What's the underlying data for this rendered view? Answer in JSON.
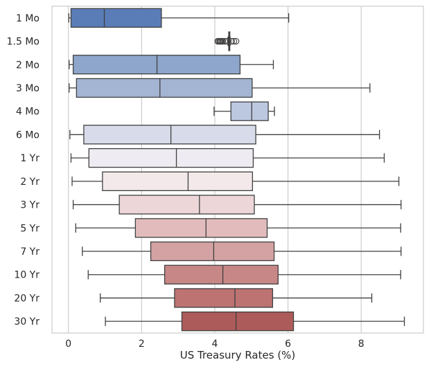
{
  "chart_data": {
    "type": "boxplot",
    "orientation": "horizontal",
    "xlabel": "US Treasury Rates (%)",
    "ylabel": "",
    "xlim": [
      -0.45,
      9.7
    ],
    "xticks": [
      0,
      2,
      4,
      6,
      8
    ],
    "grid": "vertical",
    "categories": [
      "1 Mo",
      "1.5 Mo",
      "2 Mo",
      "3 Mo",
      "4 Mo",
      "6 Mo",
      "1 Yr",
      "2 Yr",
      "3 Yr",
      "5 Yr",
      "7 Yr",
      "10 Yr",
      "20 Yr",
      "30 Yr"
    ],
    "boxes": [
      {
        "whislo": 0.01,
        "q1": 0.07,
        "med": 0.98,
        "q3": 2.54,
        "whishi": 6.02,
        "fliers": [],
        "color": "#5a7db8"
      },
      {
        "whislo": 4.36,
        "q1": 4.38,
        "med": 4.39,
        "q3": 4.41,
        "whishi": 4.42,
        "fliers": [
          4.08,
          4.11,
          4.14,
          4.16,
          4.19,
          4.22,
          4.27,
          4.33,
          4.46,
          4.52,
          4.58
        ],
        "color": "#7a93c1"
      },
      {
        "whislo": 0.02,
        "q1": 0.13,
        "med": 2.42,
        "q3": 4.69,
        "whishi": 5.6,
        "fliers": [],
        "color": "#8ea6cb"
      },
      {
        "whislo": 0.02,
        "q1": 0.22,
        "med": 2.5,
        "q3": 5.02,
        "whishi": 8.24,
        "fliers": [],
        "color": "#a4b5d3"
      },
      {
        "whislo": 3.98,
        "q1": 4.44,
        "med": 5.01,
        "q3": 5.46,
        "whishi": 5.63,
        "fliers": [],
        "color": "#bcc7e0"
      },
      {
        "whislo": 0.04,
        "q1": 0.42,
        "med": 2.8,
        "q3": 5.12,
        "whishi": 8.5,
        "fliers": [],
        "color": "#d8dcea"
      },
      {
        "whislo": 0.07,
        "q1": 0.56,
        "med": 2.95,
        "q3": 5.05,
        "whishi": 8.63,
        "fliers": [],
        "color": "#eeecf2"
      },
      {
        "whislo": 0.1,
        "q1": 0.93,
        "med": 3.27,
        "q3": 5.03,
        "whishi": 9.03,
        "fliers": [],
        "color": "#f4e9ea"
      },
      {
        "whislo": 0.13,
        "q1": 1.39,
        "med": 3.58,
        "q3": 5.08,
        "whishi": 9.09,
        "fliers": [],
        "color": "#ecd6d8"
      },
      {
        "whislo": 0.2,
        "q1": 1.83,
        "med": 3.76,
        "q3": 5.43,
        "whishi": 9.08,
        "fliers": [],
        "color": "#e2bcbd"
      },
      {
        "whislo": 0.38,
        "q1": 2.25,
        "med": 3.97,
        "q3": 5.62,
        "whishi": 9.09,
        "fliers": [],
        "color": "#d4a2a2"
      },
      {
        "whislo": 0.54,
        "q1": 2.63,
        "med": 4.22,
        "q3": 5.73,
        "whishi": 9.08,
        "fliers": [],
        "color": "#c88787"
      },
      {
        "whislo": 0.87,
        "q1": 2.9,
        "med": 4.55,
        "q3": 5.58,
        "whishi": 8.29,
        "fliers": [],
        "color": "#bc7372"
      },
      {
        "whislo": 1.01,
        "q1": 3.1,
        "med": 4.58,
        "q3": 6.15,
        "whishi": 9.18,
        "fliers": [],
        "color": "#ad5b5a"
      }
    ]
  }
}
